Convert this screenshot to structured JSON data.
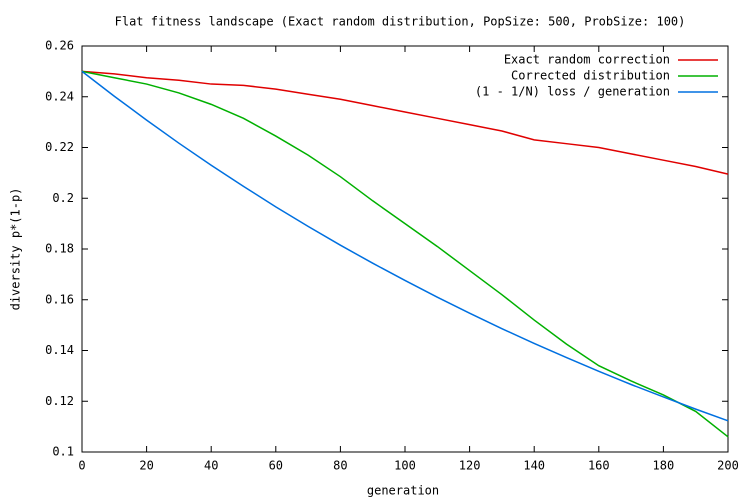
{
  "chart_data": {
    "type": "line",
    "title": "Flat fitness landscape (Exact random distribution, PopSize: 500, ProbSize: 100)",
    "x_label": "generation",
    "y_label": "diversity p*(1-p)",
    "x": [
      0,
      10,
      20,
      30,
      40,
      50,
      60,
      70,
      80,
      90,
      100,
      110,
      120,
      130,
      140,
      150,
      160,
      170,
      180,
      190,
      200
    ],
    "series": [
      {
        "name": "Exact random correction",
        "color": "#e00000",
        "values": [
          0.25,
          0.249,
          0.2475,
          0.2465,
          0.245,
          0.2445,
          0.243,
          0.241,
          0.239,
          0.2365,
          0.234,
          0.2315,
          0.229,
          0.2265,
          0.223,
          0.2215,
          0.22,
          0.2175,
          0.215,
          0.2125,
          0.2095
        ]
      },
      {
        "name": "Corrected distribution",
        "color": "#00b000",
        "values": [
          0.25,
          0.2475,
          0.245,
          0.2415,
          0.237,
          0.2315,
          0.2245,
          0.217,
          0.2085,
          0.199,
          0.19,
          0.181,
          0.1715,
          0.162,
          0.152,
          0.1425,
          0.134,
          0.128,
          0.1225,
          0.116,
          0.106
        ]
      },
      {
        "name": "(1 - 1/N) loss / generation",
        "color": "#0070e0",
        "values": [
          0.25,
          0.2402,
          0.2308,
          0.2217,
          0.213,
          0.2047,
          0.1966,
          0.1889,
          0.1815,
          0.1744,
          0.1676,
          0.161,
          0.1547,
          0.1486,
          0.1428,
          0.1372,
          0.1318,
          0.1266,
          0.1217,
          0.1169,
          0.1123
        ]
      }
    ],
    "xlim": [
      0,
      200
    ],
    "xticks": [
      0,
      20,
      40,
      60,
      80,
      100,
      120,
      140,
      160,
      180,
      200
    ],
    "ylim": [
      0.1,
      0.26
    ],
    "yticks": [
      0.1,
      0.12,
      0.14,
      0.16,
      0.18,
      0.2,
      0.22,
      0.24,
      0.26
    ],
    "grid": false,
    "legend": "top-right"
  }
}
